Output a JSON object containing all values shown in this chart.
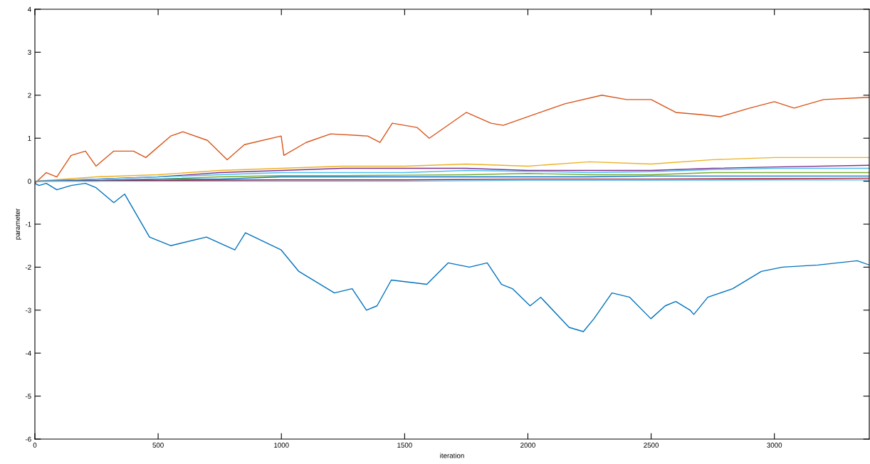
{
  "chart_data": {
    "type": "line",
    "xlabel": "iteration",
    "ylabel": "parameter",
    "xlim": [
      0,
      3385
    ],
    "ylim": [
      -6,
      4
    ],
    "xticks": [
      0,
      500,
      1000,
      1500,
      2000,
      2500,
      3000
    ],
    "yticks": [
      -6,
      -5,
      -4,
      -3,
      -2,
      -1,
      0,
      1,
      2,
      3,
      4
    ],
    "grid": false,
    "legend": false,
    "marker": "none",
    "line_style": "solid",
    "series": [
      {
        "color": "#0072bd",
        "x": [
          0,
          17,
          46,
          89,
          147,
          205,
          248,
          320,
          364,
          465,
          551,
          696,
          811,
          854,
          999,
          1071,
          1215,
          1287,
          1345,
          1388,
          1446,
          1590,
          1677,
          1763,
          1835,
          1893,
          1937,
          2009,
          2052,
          2167,
          2225,
          2268,
          2341,
          2413,
          2499,
          2557,
          2600,
          2658,
          2673,
          2730,
          2831,
          2947,
          3033,
          3177,
          3336,
          3385
        ],
        "values": [
          -0.05,
          -0.1,
          -0.05,
          -0.2,
          -0.1,
          -0.05,
          -0.15,
          -0.5,
          -0.3,
          -1.3,
          -1.5,
          -1.3,
          -1.6,
          -1.2,
          -1.6,
          -2.1,
          -2.6,
          -2.5,
          -3.0,
          -2.9,
          -2.3,
          -2.4,
          -1.9,
          -2.0,
          -1.9,
          -2.4,
          -2.5,
          -2.9,
          -2.7,
          -3.4,
          -3.5,
          -3.2,
          -2.6,
          -2.7,
          -3.2,
          -2.9,
          -2.8,
          -3.0,
          -3.1,
          -2.7,
          -2.5,
          -2.1,
          -2.0,
          -1.95,
          -1.85,
          -1.95
        ]
      },
      {
        "color": "#d95319",
        "x": [
          0,
          46,
          89,
          147,
          205,
          248,
          320,
          400,
          450,
          551,
          600,
          700,
          780,
          850,
          999,
          1010,
          1100,
          1200,
          1350,
          1400,
          1450,
          1550,
          1600,
          1750,
          1850,
          1900,
          2050,
          2150,
          2300,
          2400,
          2500,
          2600,
          2700,
          2780,
          2900,
          3000,
          3080,
          3200,
          3385
        ],
        "values": [
          -0.05,
          0.2,
          0.1,
          0.6,
          0.7,
          0.35,
          0.7,
          0.7,
          0.55,
          1.05,
          1.15,
          0.95,
          0.5,
          0.85,
          1.05,
          0.6,
          0.9,
          1.1,
          1.05,
          0.9,
          1.35,
          1.25,
          1.0,
          1.6,
          1.35,
          1.3,
          1.6,
          1.8,
          2.0,
          1.9,
          1.9,
          1.6,
          1.55,
          1.5,
          1.7,
          1.85,
          1.7,
          1.9,
          1.95
        ]
      },
      {
        "color": "#edb120",
        "x": [
          0,
          250,
          500,
          750,
          1000,
          1250,
          1500,
          1750,
          2000,
          2250,
          2500,
          2750,
          3000,
          3385
        ],
        "values": [
          0,
          0.1,
          0.15,
          0.25,
          0.3,
          0.35,
          0.35,
          0.4,
          0.35,
          0.45,
          0.4,
          0.5,
          0.55,
          0.55
        ]
      },
      {
        "color": "#7e2f8e",
        "x": [
          0,
          250,
          500,
          750,
          1000,
          1250,
          1500,
          1750,
          2000,
          2250,
          2500,
          2750,
          3000,
          3385
        ],
        "values": [
          0,
          0.05,
          0.1,
          0.2,
          0.25,
          0.3,
          0.3,
          0.3,
          0.25,
          0.25,
          0.25,
          0.3,
          0.33,
          0.37
        ]
      },
      {
        "color": "#4dbeee",
        "x": [
          0,
          250,
          500,
          750,
          1000,
          1250,
          1500,
          1750,
          2000,
          2250,
          2500,
          2750,
          3000,
          3385
        ],
        "values": [
          0,
          0.05,
          0.1,
          0.15,
          0.2,
          0.2,
          0.2,
          0.25,
          0.23,
          0.2,
          0.22,
          0.27,
          0.3,
          0.3
        ]
      },
      {
        "color": "#77ac30",
        "x": [
          0,
          250,
          500,
          750,
          1000,
          1250,
          1500,
          1750,
          2000,
          2250,
          2500,
          2750,
          3000,
          3385
        ],
        "values": [
          0,
          0.0,
          0.05,
          0.1,
          0.13,
          0.13,
          0.14,
          0.15,
          0.18,
          0.15,
          0.15,
          0.2,
          0.2,
          0.2
        ]
      },
      {
        "color": "#0072bd",
        "x": [
          0,
          250,
          500,
          750,
          1000,
          1250,
          1500,
          1750,
          2000,
          2250,
          2500,
          2750,
          3000,
          3385
        ],
        "values": [
          0,
          0.02,
          0.05,
          0.05,
          0.1,
          0.1,
          0.1,
          0.1,
          0.1,
          0.1,
          0.12,
          0.12,
          0.12,
          0.12
        ]
      },
      {
        "color": "#a2142f",
        "x": [
          0,
          500,
          1000,
          1500,
          2000,
          2500,
          3000,
          3385
        ],
        "values": [
          0,
          0.02,
          0.03,
          0.03,
          0.05,
          0.05,
          0.06,
          0.07
        ]
      },
      {
        "color": "#4dbeee",
        "x": [
          0,
          500,
          1000,
          1500,
          2000,
          2500,
          3000,
          3385
        ],
        "values": [
          0,
          0.0,
          0.0,
          0.0,
          0.02,
          0.02,
          0.03,
          0.03
        ]
      }
    ]
  }
}
